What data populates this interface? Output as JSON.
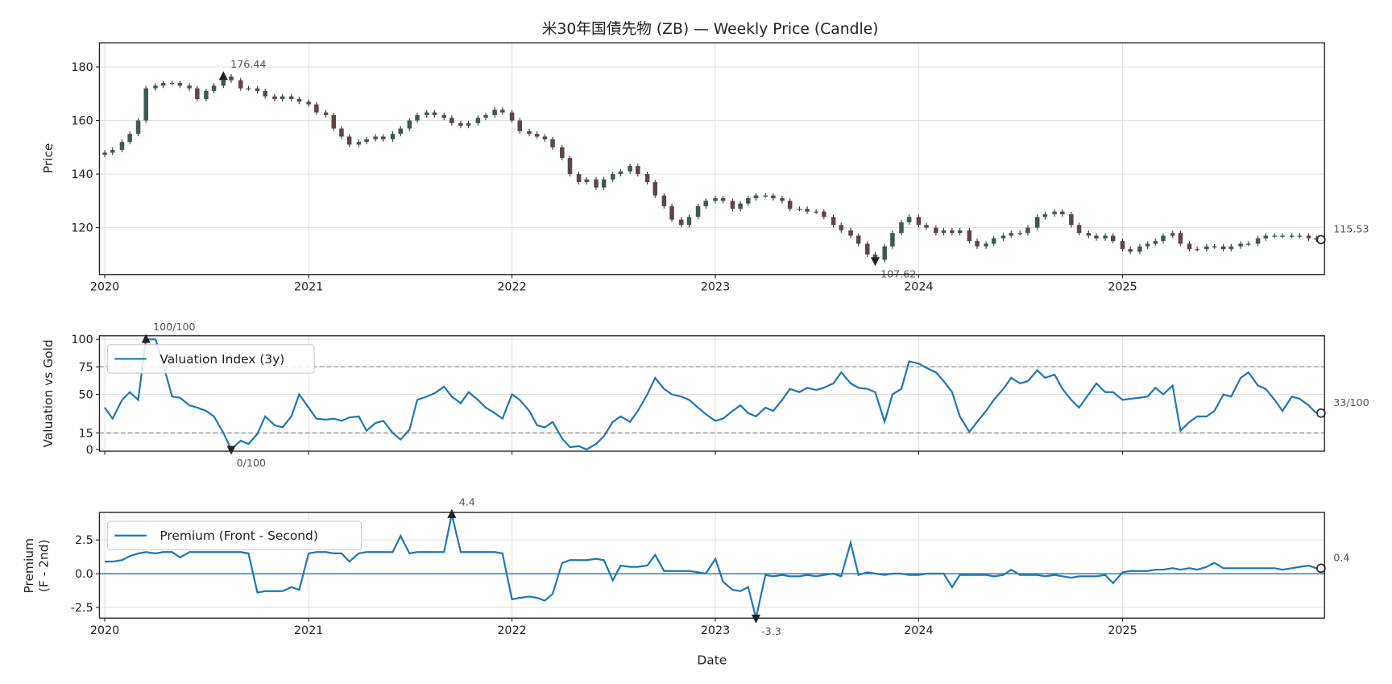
{
  "chart_data": [
    {
      "type": "candlestick",
      "title": "米30年国債先物 (ZB) — Weekly Price (Candle)",
      "xlabel": "",
      "ylabel": "Price",
      "ylim": [
        102.5,
        189
      ],
      "yticks": [
        120,
        140,
        160,
        180
      ],
      "xticks": [
        "2020",
        "2021",
        "2022",
        "2023",
        "2024",
        "2025"
      ],
      "grid": true,
      "colors": {
        "up": "#3d5a55",
        "down": "#5e4646",
        "wick": "#333333"
      },
      "annotations": {
        "max": {
          "label": "176.44",
          "date": "2020-08-01",
          "value": 176.44
        },
        "min": {
          "label": "107.62",
          "date": "2023-10-15",
          "value": 107.62
        },
        "last": {
          "label": "115.53",
          "date": "2025-12-15",
          "value": 115.53
        }
      },
      "close": [
        148,
        149,
        152,
        155,
        160,
        172,
        173,
        174,
        174,
        173,
        172,
        168,
        171,
        173,
        176.4,
        175,
        172,
        172,
        171,
        169,
        168,
        169,
        168,
        167,
        166,
        163,
        162,
        157,
        154,
        151,
        152,
        153,
        154,
        153,
        155,
        157,
        160,
        162,
        163,
        162,
        161,
        159,
        158,
        159,
        161,
        162,
        164,
        163,
        160,
        156,
        155,
        154,
        153,
        150,
        146,
        140,
        137,
        138,
        135,
        138,
        140,
        141,
        143,
        140,
        137,
        132,
        128,
        123,
        121,
        124,
        128,
        130,
        131,
        130,
        127,
        129,
        131,
        132,
        132,
        131,
        130,
        127,
        127,
        126,
        126,
        124,
        121,
        119,
        117,
        114,
        110,
        108,
        113,
        118,
        122,
        124,
        121,
        120,
        118,
        119,
        118,
        119,
        115,
        113,
        114,
        116,
        117,
        118,
        118,
        120,
        124,
        125,
        126,
        125,
        121,
        118,
        117,
        116,
        117,
        115,
        112,
        111,
        113,
        114,
        115,
        117,
        118,
        114,
        112,
        112,
        113,
        113,
        112,
        113,
        114,
        114,
        116,
        117,
        117,
        117,
        117,
        117,
        116,
        115.53
      ]
    },
    {
      "type": "line",
      "ylabel": "Valuation vs Gold",
      "ylim": [
        -1.6,
        103.2
      ],
      "yticks": [
        0,
        15,
        50,
        75,
        100
      ],
      "hlines": [
        75,
        15
      ],
      "legend": "top-left",
      "series": [
        {
          "name": "Valuation Index (3y)",
          "color": "#1f77b4",
          "values": [
            38,
            28,
            45,
            52,
            45,
            100,
            100,
            77,
            48,
            47,
            40,
            38,
            35,
            30,
            15,
            0,
            8,
            5,
            14,
            30,
            22,
            20,
            30,
            50,
            38,
            28,
            27,
            28,
            26,
            29,
            30,
            17,
            24,
            26,
            15,
            9,
            18,
            45,
            48,
            51,
            57,
            48,
            42,
            52,
            45,
            38,
            33,
            28,
            50,
            45,
            35,
            22,
            20,
            25,
            10,
            2,
            3,
            0,
            5,
            12,
            25,
            30,
            25,
            35,
            50,
            65,
            55,
            50,
            48,
            45,
            38,
            32,
            26,
            28,
            35,
            40,
            33,
            30,
            38,
            35,
            45,
            55,
            52,
            56,
            54,
            56,
            60,
            70,
            60,
            56,
            55,
            52,
            25,
            50,
            55,
            80,
            78,
            74,
            70,
            62,
            52,
            30,
            16,
            25,
            35,
            45,
            55,
            65,
            60,
            62,
            72,
            65,
            68,
            55,
            45,
            38,
            50,
            60,
            52,
            52,
            45,
            46,
            47,
            48,
            56,
            50,
            58,
            17,
            25,
            30,
            30,
            35,
            50,
            48,
            65,
            70,
            58,
            55,
            45,
            35,
            48,
            46,
            40,
            33
          ]
        }
      ],
      "annotations": {
        "max": {
          "label": "100/100",
          "date": "2020-03-15",
          "value": 100
        },
        "min": {
          "label": "0/100",
          "date": "2020-08-15",
          "value": 0
        },
        "last": {
          "label": "33/100",
          "date": "2025-12-15",
          "value": 33
        }
      }
    },
    {
      "type": "line",
      "xlabel": "Date",
      "ylabel": [
        "Premium",
        "(F - 2nd)"
      ],
      "ylim": [
        -3.3,
        4.54
      ],
      "yticks": [
        -2.5,
        0.0,
        2.5
      ],
      "ytick_labels": [
        "-2.5",
        "0.0",
        "2.5"
      ],
      "xticks": [
        "2020",
        "2021",
        "2022",
        "2023",
        "2024",
        "2025"
      ],
      "hline": 0,
      "legend": "top-left",
      "series": [
        {
          "name": "Premium (Front - Second)",
          "color": "#1f77b4",
          "values": [
            0.9,
            0.9,
            1.0,
            1.3,
            1.5,
            1.6,
            1.5,
            1.6,
            1.6,
            1.2,
            1.6,
            1.6,
            1.6,
            1.6,
            1.6,
            1.6,
            1.6,
            1.5,
            -1.4,
            -1.3,
            -1.3,
            -1.3,
            -1.0,
            -1.2,
            1.5,
            1.6,
            1.6,
            1.5,
            1.5,
            0.9,
            1.5,
            1.6,
            1.6,
            1.6,
            1.6,
            2.8,
            1.5,
            1.6,
            1.6,
            1.6,
            1.6,
            4.4,
            1.6,
            1.6,
            1.6,
            1.6,
            1.6,
            1.5,
            -1.9,
            -1.8,
            -1.7,
            -1.8,
            -2.0,
            -1.5,
            0.8,
            1.0,
            1.0,
            1.0,
            1.1,
            1.0,
            -0.5,
            0.6,
            0.5,
            0.5,
            0.6,
            1.4,
            0.2,
            0.2,
            0.2,
            0.2,
            0.1,
            0.0,
            1.1,
            -0.6,
            -1.2,
            -1.3,
            -1.0,
            -3.3,
            -0.1,
            -0.2,
            -0.1,
            -0.2,
            -0.2,
            -0.1,
            -0.2,
            -0.1,
            0.0,
            -0.2,
            2.3,
            -0.1,
            0.1,
            0.0,
            -0.1,
            0.0,
            0.0,
            -0.1,
            -0.1,
            0.0,
            0.0,
            0.0,
            -1.0,
            -0.1,
            -0.1,
            -0.1,
            -0.1,
            -0.2,
            -0.1,
            0.3,
            -0.1,
            -0.1,
            -0.1,
            -0.2,
            -0.1,
            -0.2,
            -0.3,
            -0.2,
            -0.2,
            -0.2,
            -0.1,
            -0.7,
            0.1,
            0.2,
            0.2,
            0.2,
            0.3,
            0.3,
            0.4,
            0.3,
            0.4,
            0.3,
            0.5,
            0.8,
            0.4,
            0.4,
            0.4,
            0.4,
            0.4,
            0.4,
            0.4,
            0.3,
            0.4,
            0.5,
            0.6,
            0.4
          ]
        }
      ],
      "annotations": {
        "max": {
          "label": "4.4",
          "date": "2021-09-15",
          "value": 4.4
        },
        "min": {
          "label": "-3.3",
          "date": "2023-03-15",
          "value": -3.3
        },
        "last": {
          "label": "0.4",
          "date": "2025-12-15",
          "value": 0.4
        }
      }
    }
  ],
  "x": [
    "2020-01-01",
    "2020-01-15",
    "2020-02-01",
    "2020-02-15",
    "2020-03-01",
    "2020-03-15",
    "2020-04-01",
    "2020-04-15",
    "2020-05-01",
    "2020-05-15",
    "2020-06-01",
    "2020-06-15",
    "2020-07-01",
    "2020-07-15",
    "2020-08-01",
    "2020-08-15",
    "2020-09-01",
    "2020-09-15",
    "2020-10-01",
    "2020-10-15",
    "2020-11-01",
    "2020-11-15",
    "2020-12-01",
    "2020-12-15",
    "2021-01-01",
    "2021-01-15",
    "2021-02-01",
    "2021-02-15",
    "2021-03-01",
    "2021-03-15",
    "2021-04-01",
    "2021-04-15",
    "2021-05-01",
    "2021-05-15",
    "2021-06-01",
    "2021-06-15",
    "2021-07-01",
    "2021-07-15",
    "2021-08-01",
    "2021-08-15",
    "2021-09-01",
    "2021-09-15",
    "2021-10-01",
    "2021-10-15",
    "2021-11-01",
    "2021-11-15",
    "2021-12-01",
    "2021-12-15",
    "2022-01-01",
    "2022-01-15",
    "2022-02-01",
    "2022-02-15",
    "2022-03-01",
    "2022-03-15",
    "2022-04-01",
    "2022-04-15",
    "2022-05-01",
    "2022-05-15",
    "2022-06-01",
    "2022-06-15",
    "2022-07-01",
    "2022-07-15",
    "2022-08-01",
    "2022-08-15",
    "2022-09-01",
    "2022-09-15",
    "2022-10-01",
    "2022-10-15",
    "2022-11-01",
    "2022-11-15",
    "2022-12-01",
    "2022-12-15",
    "2023-01-01",
    "2023-01-15",
    "2023-02-01",
    "2023-02-15",
    "2023-03-01",
    "2023-03-15",
    "2023-04-01",
    "2023-04-15",
    "2023-05-01",
    "2023-05-15",
    "2023-06-01",
    "2023-06-15",
    "2023-07-01",
    "2023-07-15",
    "2023-08-01",
    "2023-08-15",
    "2023-09-01",
    "2023-09-15",
    "2023-10-01",
    "2023-10-15",
    "2023-11-01",
    "2023-11-15",
    "2023-12-01",
    "2023-12-15",
    "2024-01-01",
    "2024-01-15",
    "2024-02-01",
    "2024-02-15",
    "2024-03-01",
    "2024-03-15",
    "2024-04-01",
    "2024-04-15",
    "2024-05-01",
    "2024-05-15",
    "2024-06-01",
    "2024-06-15",
    "2024-07-01",
    "2024-07-15",
    "2024-08-01",
    "2024-08-15",
    "2024-09-01",
    "2024-09-15",
    "2024-10-01",
    "2024-10-15",
    "2024-11-01",
    "2024-11-15",
    "2024-12-01",
    "2024-12-15",
    "2025-01-01",
    "2025-01-15",
    "2025-02-01",
    "2025-02-15",
    "2025-03-01",
    "2025-03-15",
    "2025-04-01",
    "2025-04-15",
    "2025-05-01",
    "2025-05-15",
    "2025-06-01",
    "2025-06-15",
    "2025-07-01",
    "2025-07-15",
    "2025-08-01",
    "2025-08-15",
    "2025-09-01",
    "2025-09-15",
    "2025-10-01",
    "2025-10-15",
    "2025-11-01",
    "2025-11-15",
    "2025-12-01",
    "2025-12-15"
  ]
}
